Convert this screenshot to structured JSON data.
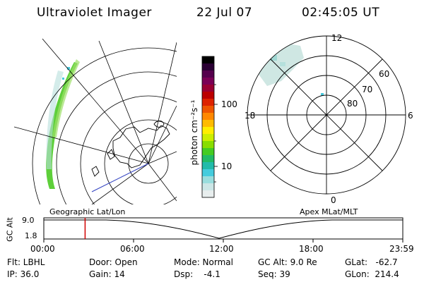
{
  "header": {
    "title": "Ultraviolet Imager",
    "date": "22 Jul 07",
    "time": "02:45:05 UT"
  },
  "colorbar": {
    "unit_label": "photon cm⁻²s⁻¹",
    "ticks": [
      "100",
      "10"
    ],
    "colors": [
      "#000000",
      "#2a0033",
      "#55004d",
      "#7a0055",
      "#990033",
      "#bb0000",
      "#dd2200",
      "#ee5500",
      "#ff8800",
      "#ffbb00",
      "#ffee00",
      "#ccee00",
      "#88dd00",
      "#44cc22",
      "#22bb66",
      "#22bbaa",
      "#44ccdd",
      "#99dddd",
      "#cce6e6",
      "#e8eeee"
    ]
  },
  "polar_plot": {
    "mlt_labels": [
      "12",
      "18",
      "6",
      "0"
    ],
    "mlat_labels": [
      "60",
      "70",
      "80"
    ]
  },
  "timeline": {
    "left_title": "Geographic Lat/Lon",
    "right_title": "Apex  MLat/MLT",
    "y_axis_title": "GC Alt",
    "y_ticks": [
      "9.0",
      "1.8"
    ],
    "x_ticks": [
      "00:00",
      "06:00",
      "12:00",
      "18:00",
      "23:59"
    ],
    "cursor_time_fraction": 0.115
  },
  "info": {
    "flt": "Flt: LBHL",
    "ip": "IP: 36.0",
    "door": "Door: Open",
    "gain": "Gain: 14",
    "mode": "Mode: Normal",
    "dsp": "Dsp:    -4.1",
    "gcalt": "GC Alt: 9.0 Re",
    "seq": "Seq: 39",
    "glat": "GLat:   -62.7",
    "glon": "GLon:  214.4"
  }
}
